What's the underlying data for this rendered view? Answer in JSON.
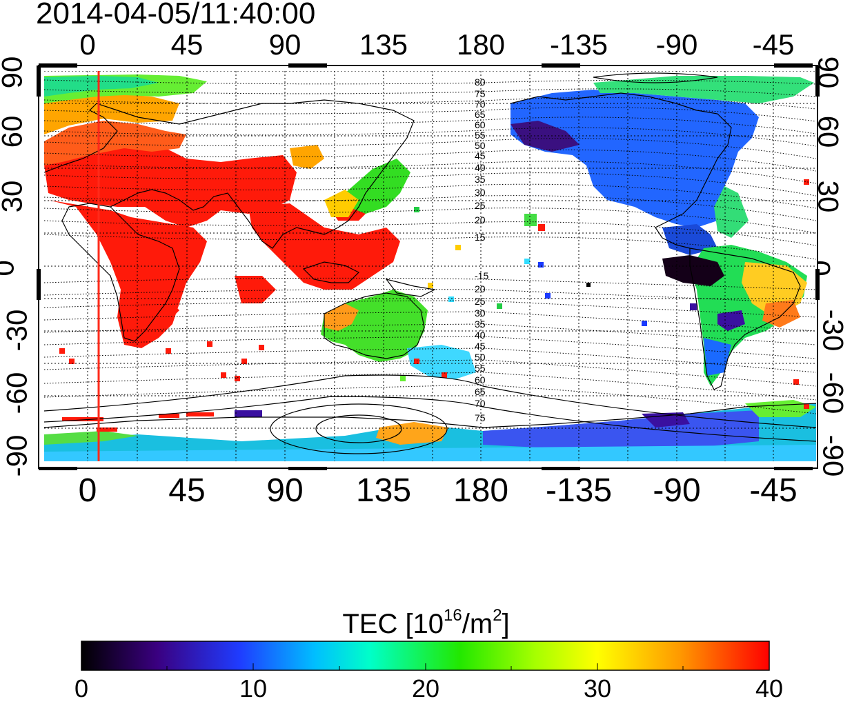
{
  "title": "2014-04-05/11:40:00",
  "map": {
    "top_lon_labels": [
      "0",
      "45",
      "90",
      "135",
      "180",
      "-135",
      "-90",
      "-45"
    ],
    "bottom_lon_labels": [
      "0",
      "45",
      "90",
      "135",
      "180",
      "-135",
      "-90",
      "-45"
    ],
    "left_lat_labels": [
      "90",
      "60",
      "30",
      "0",
      "-30",
      "-60",
      "-90"
    ],
    "right_lat_labels": [
      "90",
      "60",
      "30",
      "0",
      "-30",
      "-60",
      "-90"
    ],
    "contour_labels_north": [
      "80",
      "75",
      "70",
      "65",
      "60",
      "55",
      "50",
      "45",
      "40",
      "35",
      "30",
      "25",
      "20",
      "15"
    ],
    "contour_labels_south": [
      "-15",
      "20",
      "25",
      "30",
      "35",
      "40",
      "45",
      "50",
      "55",
      "60",
      "65",
      "70",
      "75"
    ],
    "colors": {
      "marker_line": "#ff2a1a",
      "frame": "#000000"
    }
  },
  "colorbar": {
    "label_prefix": "TEC  [10",
    "label_sup1": "16",
    "label_mid": "/m",
    "label_sup2": "2",
    "label_suffix": "]",
    "ticks": [
      "0",
      "10",
      "20",
      "30",
      "40"
    ],
    "range": [
      0,
      40
    ],
    "colormap": [
      "#000000",
      "#3a0080",
      "#1f3cff",
      "#00bfff",
      "#00ffc8",
      "#22e800",
      "#a6ff00",
      "#ffff00",
      "#ff9900",
      "#ff0000"
    ]
  }
}
